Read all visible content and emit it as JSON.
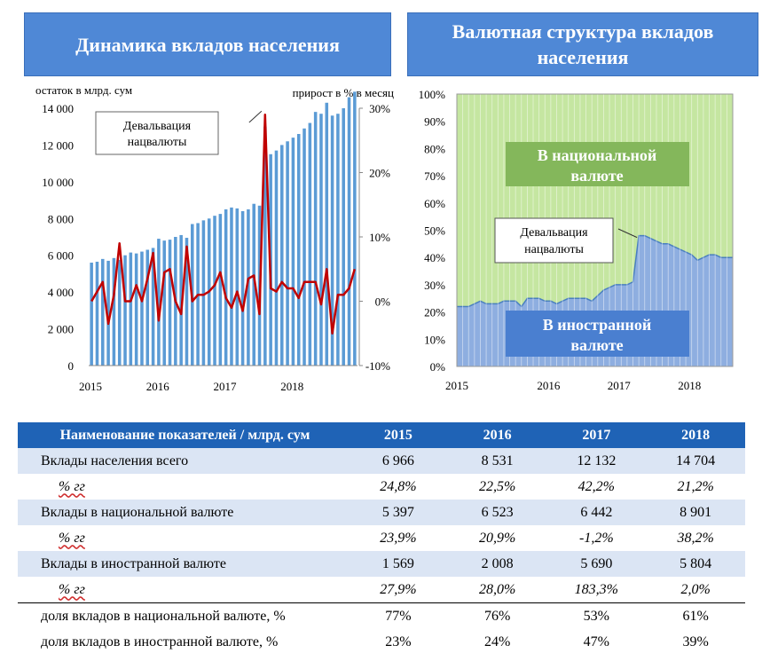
{
  "titles": {
    "left": "Динамика вкладов населения",
    "right": "Валютная структура вкладов населения"
  },
  "chart_data": [
    {
      "type": "bar",
      "title": "Динамика вкладов населения",
      "ylabel": "остаток в млрд. сум",
      "y2label": "прирост в % в месяц",
      "ylim": [
        0,
        14000
      ],
      "y2lim": [
        -10,
        30
      ],
      "yticks": [
        "0",
        "2 000",
        "4 000",
        "6 000",
        "8 000",
        "10 000",
        "12 000",
        "14 000"
      ],
      "y2ticks": [
        "-10%",
        "0%",
        "10%",
        "20%",
        "30%"
      ],
      "x_labels": [
        "2015",
        "2016",
        "2017",
        "2018"
      ],
      "annotation": "Девальвация нацвалюты",
      "series": [
        {
          "name": "остаток в млрд. сум",
          "kind": "bar",
          "values": [
            5600,
            5650,
            5800,
            5700,
            5850,
            5750,
            6000,
            6150,
            6100,
            6200,
            6300,
            6400,
            6900,
            6800,
            6850,
            7000,
            7100,
            6950,
            7700,
            7750,
            7900,
            8000,
            8150,
            8250,
            8500,
            8600,
            8550,
            8400,
            8500,
            8800,
            8700,
            13000,
            11500,
            11700,
            12000,
            12200,
            12400,
            12600,
            12900,
            13200,
            13800,
            13700,
            14300,
            13600,
            13700,
            14000,
            14600,
            14900
          ]
        },
        {
          "name": "прирост в % в месяц",
          "kind": "line",
          "axis": "right",
          "values": [
            0,
            1.5,
            3,
            -3.5,
            1,
            9,
            0,
            0,
            2.5,
            0,
            3.5,
            7.5,
            -3,
            4.5,
            5,
            0,
            -2,
            8.5,
            0,
            1,
            1,
            1.5,
            2.5,
            4.5,
            0.5,
            -1,
            1.5,
            -1.5,
            3.5,
            4,
            -2,
            29,
            2,
            1.5,
            3,
            2,
            2,
            0.5,
            3,
            3,
            3,
            -0.5,
            5,
            -5,
            1,
            1,
            2,
            5
          ]
        }
      ]
    },
    {
      "type": "area",
      "title": "Валютная структура вкладов населения",
      "ylim": [
        0,
        100
      ],
      "yticks": [
        "0%",
        "10%",
        "20%",
        "30%",
        "40%",
        "50%",
        "60%",
        "70%",
        "80%",
        "90%",
        "100%"
      ],
      "x_labels": [
        "2015",
        "2016",
        "2017",
        "2018"
      ],
      "annotation": "Девальвация нацвалюты",
      "series": [
        {
          "name": "В иностранной валюте",
          "values": [
            22,
            22,
            22,
            23,
            24,
            23,
            23,
            23,
            24,
            24,
            24,
            22,
            25,
            25,
            25,
            24,
            24,
            23,
            24,
            25,
            25,
            25,
            25,
            24,
            26,
            28,
            29,
            30,
            30,
            30,
            31,
            48,
            48,
            47,
            46,
            45,
            45,
            44,
            43,
            42,
            41,
            39,
            40,
            41,
            41,
            40,
            40,
            40
          ]
        },
        {
          "name": "В национальной валюте",
          "values": [
            78,
            78,
            78,
            77,
            76,
            77,
            77,
            77,
            76,
            76,
            76,
            78,
            75,
            75,
            75,
            76,
            76,
            77,
            76,
            75,
            75,
            75,
            75,
            76,
            74,
            72,
            71,
            70,
            70,
            70,
            69,
            52,
            52,
            53,
            54,
            55,
            55,
            56,
            57,
            58,
            59,
            61,
            60,
            59,
            59,
            60,
            60,
            60
          ]
        }
      ],
      "area_labels": {
        "national": "В национальной валюте",
        "foreign": "В иностранной валюте"
      }
    }
  ],
  "table": {
    "header": {
      "name": "Наименование показателей / млрд. сум",
      "years": [
        "2015",
        "2016",
        "2017",
        "2018"
      ]
    },
    "rows": [
      {
        "name": "Вклады населения всего",
        "values": [
          "6 966",
          "8 531",
          "12 132",
          "14 704"
        ]
      },
      {
        "name": "% гг",
        "values": [
          "24,8%",
          "22,5%",
          "42,2%",
          "21,2%"
        ]
      },
      {
        "name": "Вклады в национальной валюте",
        "values": [
          "5 397",
          "6 523",
          "6 442",
          "8 901"
        ]
      },
      {
        "name": "% гг",
        "values": [
          "23,9%",
          "20,9%",
          "-1,2%",
          "38,2%"
        ]
      },
      {
        "name": "Вклады в иностранной валюте",
        "values": [
          "1 569",
          "2 008",
          "5 690",
          "5 804"
        ]
      },
      {
        "name": "% гг",
        "values": [
          "27,9%",
          "28,0%",
          "183,3%",
          "2,0%"
        ]
      },
      {
        "name": "доля вкладов в национальной валюте, %",
        "values": [
          "77%",
          "76%",
          "53%",
          "61%"
        ]
      },
      {
        "name": "доля вкладов в иностранной валюте, %",
        "values": [
          "23%",
          "24%",
          "47%",
          "39%"
        ]
      }
    ]
  },
  "colors": {
    "title_bg": "#4f88d6",
    "bar": "#5b9bd5",
    "line": "#c00000",
    "area_foreign": "#8eaee0",
    "area_national": "#c5e6a1",
    "label_national_bg": "#84b75b",
    "label_foreign_bg": "#4a7fd0",
    "table_header": "#1f63b6",
    "table_shade": "#dbe5f4"
  }
}
